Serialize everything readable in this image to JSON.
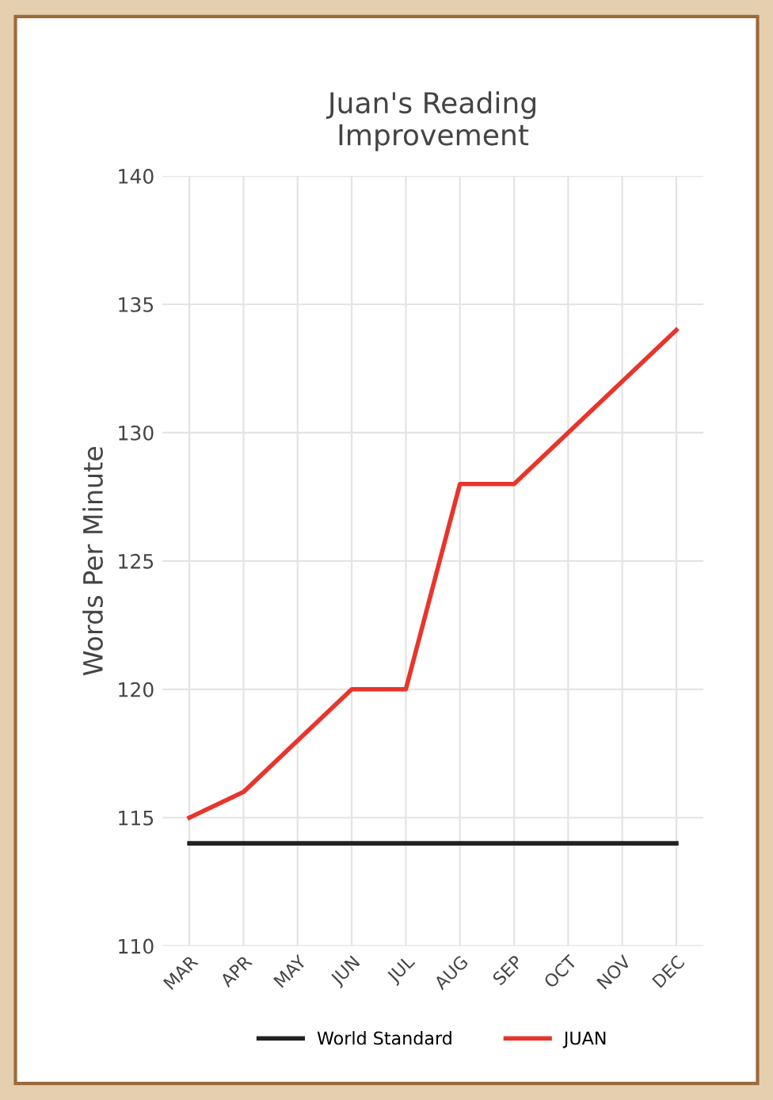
{
  "chart_data": {
    "type": "line",
    "title": "Juan's Reading\nImprovement",
    "ylabel": "Words Per Minute",
    "categories": [
      "MAR",
      "APR",
      "MAY",
      "JUN",
      "JUL",
      "AUG",
      "SEP",
      "OCT",
      "NOV",
      "DEC"
    ],
    "series": [
      {
        "name": "World Standard",
        "color": "#222222",
        "values": [
          114,
          114,
          114,
          114,
          114,
          114,
          114,
          114,
          114,
          114
        ]
      },
      {
        "name": "JUAN",
        "color": "#e8352b",
        "values": [
          115,
          116,
          118,
          120,
          120,
          128,
          128,
          130,
          132,
          134
        ]
      }
    ],
    "ylim": [
      110,
      140
    ],
    "yticks": [
      110,
      115,
      120,
      125,
      130,
      135,
      140
    ],
    "grid": true,
    "legend": "bottom",
    "marker": "none",
    "line_style": "solid"
  }
}
